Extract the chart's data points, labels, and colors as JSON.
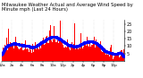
{
  "title": "Milwaukee Weather Actual and Average Wind Speed by Minute mph (Last 24 Hours)",
  "title_fontsize": 3.8,
  "n_points": 1440,
  "bar_color": "#ff0000",
  "avg_color": "#0000ff",
  "background_color": "#ffffff",
  "plot_bg_color": "#ffffff",
  "ylim": [
    0,
    28
  ],
  "yticks": [
    5,
    10,
    15,
    20,
    25
  ],
  "ytick_fontsize": 3.5,
  "xtick_fontsize": 3.0,
  "grid_color": "#cccccc",
  "avg_marker_size": 0.7,
  "seed": 99
}
